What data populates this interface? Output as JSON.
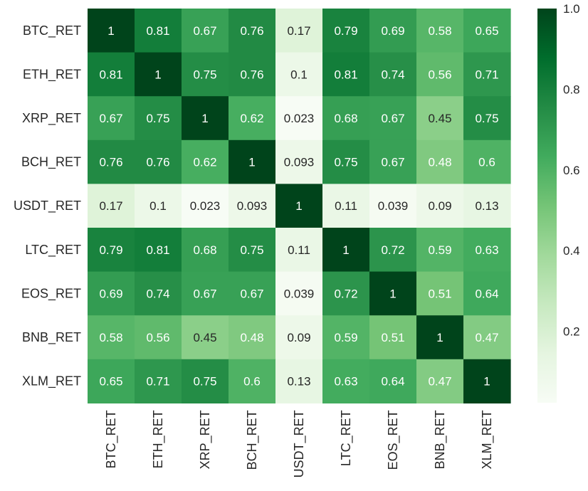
{
  "chart_data": {
    "type": "heatmap",
    "title": "",
    "xlabel": "",
    "ylabel": "",
    "x_categories": [
      "BTC_RET",
      "ETH_RET",
      "XRP_RET",
      "BCH_RET",
      "USDT_RET",
      "LTC_RET",
      "EOS_RET",
      "BNB_RET",
      "XLM_RET"
    ],
    "y_categories": [
      "BTC_RET",
      "ETH_RET",
      "XRP_RET",
      "BCH_RET",
      "USDT_RET",
      "LTC_RET",
      "EOS_RET",
      "BNB_RET",
      "XLM_RET"
    ],
    "values": [
      [
        1,
        0.81,
        0.67,
        0.76,
        0.17,
        0.79,
        0.69,
        0.58,
        0.65
      ],
      [
        0.81,
        1,
        0.75,
        0.76,
        0.1,
        0.81,
        0.74,
        0.56,
        0.71
      ],
      [
        0.67,
        0.75,
        1,
        0.62,
        0.023,
        0.68,
        0.67,
        0.45,
        0.75
      ],
      [
        0.76,
        0.76,
        0.62,
        1,
        0.093,
        0.75,
        0.67,
        0.48,
        0.6
      ],
      [
        0.17,
        0.1,
        0.023,
        0.093,
        1,
        0.11,
        0.039,
        0.09,
        0.13
      ],
      [
        0.79,
        0.81,
        0.68,
        0.75,
        0.11,
        1,
        0.72,
        0.59,
        0.63
      ],
      [
        0.69,
        0.74,
        0.67,
        0.67,
        0.039,
        0.72,
        1,
        0.51,
        0.64
      ],
      [
        0.58,
        0.56,
        0.45,
        0.48,
        0.09,
        0.59,
        0.51,
        1,
        0.47
      ],
      [
        0.65,
        0.71,
        0.75,
        0.6,
        0.13,
        0.63,
        0.64,
        0.47,
        1
      ]
    ],
    "annotations": [
      [
        "1",
        "0.81",
        "0.67",
        "0.76",
        "0.17",
        "0.79",
        "0.69",
        "0.58",
        "0.65"
      ],
      [
        "0.81",
        "1",
        "0.75",
        "0.76",
        "0.1",
        "0.81",
        "0.74",
        "0.56",
        "0.71"
      ],
      [
        "0.67",
        "0.75",
        "1",
        "0.62",
        "0.023",
        "0.68",
        "0.67",
        "0.45",
        "0.75"
      ],
      [
        "0.76",
        "0.76",
        "0.62",
        "1",
        "0.093",
        "0.75",
        "0.67",
        "0.48",
        "0.6"
      ],
      [
        "0.17",
        "0.1",
        "0.023",
        "0.093",
        "1",
        "0.11",
        "0.039",
        "0.09",
        "0.13"
      ],
      [
        "0.79",
        "0.81",
        "0.68",
        "0.75",
        "0.11",
        "1",
        "0.72",
        "0.59",
        "0.63"
      ],
      [
        "0.69",
        "0.74",
        "0.67",
        "0.67",
        "0.039",
        "0.72",
        "1",
        "0.51",
        "0.64"
      ],
      [
        "0.58",
        "0.56",
        "0.45",
        "0.48",
        "0.09",
        "0.59",
        "0.51",
        "1",
        "0.47"
      ],
      [
        "0.65",
        "0.71",
        "0.75",
        "0.6",
        "0.13",
        "0.63",
        "0.64",
        "0.47",
        "1"
      ]
    ],
    "colormap": "Greens",
    "value_range": [
      0.023,
      1.0
    ],
    "colorbar_ticks": [
      0.2,
      0.4,
      0.6,
      0.8,
      1.0
    ],
    "colorbar_tick_labels": [
      "0.2",
      "0.4",
      "0.6",
      "0.8",
      "1.0"
    ],
    "colorbar_position": "right",
    "grid": false
  }
}
